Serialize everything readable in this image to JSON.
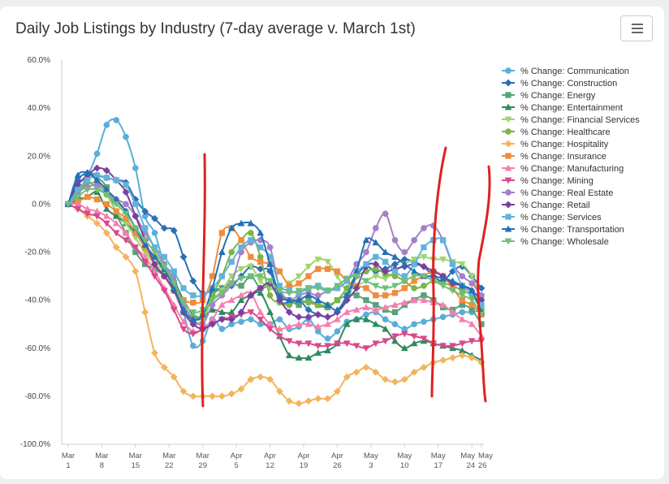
{
  "title": "Daily Job Listings by Industry (7-day average v. March 1st)",
  "menu_icon": "hamburger-menu-icon",
  "chart_data": {
    "type": "line",
    "title": "Daily Job Listings by Industry (7-day average v. March 1st)",
    "xlabel": "",
    "ylabel": "",
    "ylim": [
      -100,
      60
    ],
    "y_ticks": [
      60,
      40,
      20,
      0,
      -20,
      -40,
      -60,
      -80,
      -100
    ],
    "y_tick_labels": [
      "60.0%",
      "40.0%",
      "20.0%",
      "0.0%",
      "-20.0%",
      "-40.0%",
      "-60.0%",
      "-80.0%",
      "-100.0%"
    ],
    "x_ticks": [
      {
        "x": 0,
        "month": "Mar",
        "day": "1"
      },
      {
        "x": 7,
        "month": "Mar",
        "day": "8"
      },
      {
        "x": 14,
        "month": "Mar",
        "day": "15"
      },
      {
        "x": 21,
        "month": "Mar",
        "day": "22"
      },
      {
        "x": 28,
        "month": "Mar",
        "day": "29"
      },
      {
        "x": 35,
        "month": "Apr",
        "day": "5"
      },
      {
        "x": 42,
        "month": "Apr",
        "day": "12"
      },
      {
        "x": 49,
        "month": "Apr",
        "day": "19"
      },
      {
        "x": 56,
        "month": "Apr",
        "day": "26"
      },
      {
        "x": 63,
        "month": "May",
        "day": "3"
      },
      {
        "x": 70,
        "month": "May",
        "day": "10"
      },
      {
        "x": 77,
        "month": "May",
        "day": "17"
      },
      {
        "x": 84,
        "month": "May",
        "day": "24"
      },
      {
        "x": 86,
        "month": "May",
        "day": "26"
      }
    ],
    "grid": false,
    "legend_position": "right",
    "x": [
      0,
      2,
      4,
      6,
      8,
      10,
      12,
      14,
      16,
      18,
      20,
      22,
      24,
      26,
      28,
      30,
      32,
      34,
      36,
      38,
      40,
      42,
      44,
      46,
      48,
      50,
      52,
      54,
      56,
      58,
      60,
      62,
      64,
      66,
      68,
      70,
      72,
      74,
      76,
      78,
      80,
      82,
      84,
      86
    ],
    "series": [
      {
        "name": "% Change: Communication",
        "color": "#5aaed6",
        "marker": "circle",
        "values": [
          0,
          8,
          12,
          21,
          33,
          35,
          28,
          15,
          -5,
          -12,
          -25,
          -30,
          -45,
          -59,
          -57,
          -48,
          -52,
          -50,
          -49,
          -48,
          -50,
          -50,
          -48,
          -52,
          -51,
          -48,
          -53,
          -56,
          -53,
          -49,
          -48,
          -46,
          -45,
          -48,
          -50,
          -52,
          -50,
          -49,
          -48,
          -47,
          -46,
          -45,
          -45,
          -44
        ]
      },
      {
        "name": "% Change: Construction",
        "color": "#2b6fb6",
        "marker": "diamond",
        "values": [
          0,
          10,
          13,
          12,
          11,
          10,
          9,
          2,
          -3,
          -6,
          -10,
          -11,
          -22,
          -32,
          -37,
          -36,
          -35,
          -34,
          -30,
          -26,
          -27,
          -28,
          -40,
          -41,
          -40,
          -44,
          -46,
          -47,
          -45,
          -40,
          -30,
          -26,
          -28,
          -27,
          -25,
          -23,
          -24,
          -26,
          -30,
          -32,
          -28,
          -26,
          -30,
          -35
        ]
      },
      {
        "name": "% Change: Energy",
        "color": "#59a27b",
        "marker": "square",
        "values": [
          0,
          3,
          12,
          11,
          7,
          -4,
          -12,
          -20,
          -25,
          -27,
          -30,
          -35,
          -45,
          -48,
          -47,
          -38,
          -35,
          -33,
          -34,
          -30,
          -35,
          -34,
          -38,
          -40,
          -42,
          -40,
          -42,
          -43,
          -40,
          -38,
          -38,
          -40,
          -42,
          -44,
          -45,
          -42,
          -40,
          -38,
          -40,
          -43,
          -44,
          -42,
          -44,
          -50
        ]
      },
      {
        "name": "% Change: Entertainment",
        "color": "#2e8a5e",
        "marker": "triangle",
        "values": [
          0,
          2,
          3,
          5,
          -2,
          -5,
          -8,
          -12,
          -18,
          -22,
          -28,
          -32,
          -40,
          -46,
          -47,
          -44,
          -45,
          -45,
          -40,
          -38,
          -37,
          -45,
          -55,
          -63,
          -64,
          -64,
          -62,
          -61,
          -58,
          -50,
          -48,
          -48,
          -50,
          -52,
          -57,
          -60,
          -58,
          -57,
          -58,
          -59,
          -60,
          -61,
          -63,
          -65
        ]
      },
      {
        "name": "% Change: Financial Services",
        "color": "#9dd66b",
        "marker": "triangle-down",
        "values": [
          0,
          5,
          8,
          9,
          4,
          -3,
          -8,
          -14,
          -20,
          -25,
          -28,
          -36,
          -44,
          -50,
          -48,
          -40,
          -36,
          -30,
          -27,
          -26,
          -32,
          -35,
          -36,
          -33,
          -30,
          -26,
          -23,
          -24,
          -30,
          -36,
          -34,
          -32,
          -30,
          -31,
          -28,
          -25,
          -23,
          -22,
          -23,
          -23,
          -24,
          -25,
          -30,
          -40
        ]
      },
      {
        "name": "% Change: Healthcare",
        "color": "#7ab648",
        "marker": "circle",
        "values": [
          0,
          4,
          9,
          7,
          4,
          1,
          -3,
          -10,
          -17,
          -22,
          -27,
          -34,
          -42,
          -47,
          -46,
          -38,
          -30,
          -20,
          -15,
          -12,
          -22,
          -38,
          -41,
          -42,
          -40,
          -41,
          -42,
          -42,
          -40,
          -35,
          -30,
          -28,
          -27,
          -29,
          -30,
          -32,
          -35,
          -34,
          -32,
          -33,
          -34,
          -36,
          -38,
          -44
        ]
      },
      {
        "name": "% Change: Hospitality",
        "color": "#f2b45c",
        "marker": "diamond",
        "values": [
          0,
          -2,
          -5,
          -8,
          -12,
          -18,
          -22,
          -28,
          -45,
          -62,
          -68,
          -72,
          -78,
          -80,
          -80,
          -80,
          -80,
          -79,
          -77,
          -73,
          -72,
          -73,
          -78,
          -82,
          -83,
          -82,
          -81,
          -81,
          -78,
          -72,
          -70,
          -68,
          -70,
          -73,
          -74,
          -73,
          -70,
          -68,
          -66,
          -65,
          -64,
          -63,
          -64,
          -66
        ]
      },
      {
        "name": "% Change: Insurance",
        "color": "#f08c3c",
        "marker": "square",
        "values": [
          0,
          1,
          3,
          2,
          0,
          -3,
          -6,
          -12,
          -18,
          -25,
          -30,
          -36,
          -40,
          -41,
          -40,
          -30,
          -12,
          -10,
          -15,
          -22,
          -24,
          -25,
          -28,
          -34,
          -33,
          -30,
          -27,
          -27,
          -28,
          -32,
          -34,
          -35,
          -38,
          -38,
          -37,
          -35,
          -32,
          -30,
          -28,
          -30,
          -35,
          -40,
          -42,
          -46
        ]
      },
      {
        "name": "% Change: Manufacturing",
        "color": "#f47fae",
        "marker": "triangle",
        "values": [
          0,
          0,
          -2,
          -3,
          -5,
          -8,
          -12,
          -18,
          -22,
          -28,
          -35,
          -42,
          -49,
          -53,
          -52,
          -48,
          -42,
          -40,
          -38,
          -37,
          -45,
          -50,
          -52,
          -51,
          -50,
          -50,
          -51,
          -50,
          -48,
          -45,
          -44,
          -43,
          -44,
          -43,
          -42,
          -41,
          -40,
          -40,
          -41,
          -42,
          -45,
          -48,
          -50,
          -55
        ]
      },
      {
        "name": "% Change: Mining",
        "color": "#d9488c",
        "marker": "triangle-down",
        "values": [
          0,
          -2,
          -4,
          -5,
          -8,
          -12,
          -15,
          -18,
          -24,
          -30,
          -36,
          -44,
          -52,
          -54,
          -52,
          -50,
          -48,
          -47,
          -46,
          -45,
          -48,
          -52,
          -55,
          -57,
          -58,
          -58,
          -59,
          -59,
          -58,
          -58,
          -59,
          -60,
          -58,
          -57,
          -55,
          -54,
          -55,
          -56,
          -58,
          -59,
          -59,
          -58,
          -57,
          -57
        ]
      },
      {
        "name": "% Change: Real Estate",
        "color": "#a77fc9",
        "marker": "circle",
        "values": [
          0,
          5,
          7,
          8,
          5,
          2,
          0,
          -5,
          -12,
          -18,
          -25,
          -32,
          -42,
          -48,
          -50,
          -42,
          -38,
          -33,
          -20,
          -16,
          -15,
          -18,
          -35,
          -40,
          -38,
          -37,
          -38,
          -36,
          -35,
          -32,
          -25,
          -20,
          -10,
          -4,
          -15,
          -20,
          -15,
          -10,
          -9,
          -15,
          -25,
          -30,
          -33,
          -38
        ]
      },
      {
        "name": "% Change: Retail",
        "color": "#7b3fa0",
        "marker": "diamond",
        "values": [
          0,
          8,
          12,
          15,
          14,
          10,
          5,
          -5,
          -15,
          -25,
          -30,
          -36,
          -45,
          -50,
          -52,
          -50,
          -48,
          -48,
          -45,
          -38,
          -35,
          -33,
          -40,
          -45,
          -47,
          -47,
          -46,
          -47,
          -45,
          -40,
          -35,
          -26,
          -25,
          -28,
          -27,
          -26,
          -25,
          -26,
          -28,
          -30,
          -33,
          -34,
          -36,
          -40
        ]
      },
      {
        "name": "% Change: Services",
        "color": "#62b3d9",
        "marker": "square",
        "values": [
          0,
          6,
          10,
          12,
          11,
          10,
          8,
          0,
          -10,
          -18,
          -22,
          -28,
          -35,
          -38,
          -38,
          -35,
          -30,
          -24,
          -18,
          -15,
          -18,
          -22,
          -34,
          -36,
          -37,
          -35,
          -34,
          -36,
          -35,
          -32,
          -28,
          -25,
          -22,
          -24,
          -28,
          -30,
          -25,
          -18,
          -15,
          -15,
          -25,
          -34,
          -37,
          -42
        ]
      },
      {
        "name": "% Change: Transportation",
        "color": "#2271b8",
        "marker": "triangle",
        "values": [
          0,
          12,
          13,
          10,
          6,
          2,
          -3,
          -10,
          -17,
          -22,
          -27,
          -35,
          -44,
          -48,
          -46,
          -35,
          -20,
          -10,
          -8,
          -8,
          -12,
          -25,
          -38,
          -40,
          -40,
          -38,
          -40,
          -42,
          -44,
          -38,
          -28,
          -15,
          -16,
          -20,
          -22,
          -25,
          -28,
          -30,
          -30,
          -31,
          -32,
          -34,
          -36,
          -45
        ]
      },
      {
        "name": "% Change: Wholesale",
        "color": "#6fbf7a",
        "marker": "triangle-down",
        "values": [
          0,
          3,
          6,
          6,
          4,
          0,
          -4,
          -10,
          -15,
          -20,
          -26,
          -33,
          -41,
          -45,
          -44,
          -40,
          -37,
          -33,
          -31,
          -30,
          -30,
          -32,
          -36,
          -37,
          -36,
          -35,
          -35,
          -36,
          -34,
          -31,
          -30,
          -32,
          -34,
          -35,
          -34,
          -32,
          -30,
          -30,
          -32,
          -34,
          -36,
          -38,
          -40,
          -46
        ]
      }
    ]
  }
}
